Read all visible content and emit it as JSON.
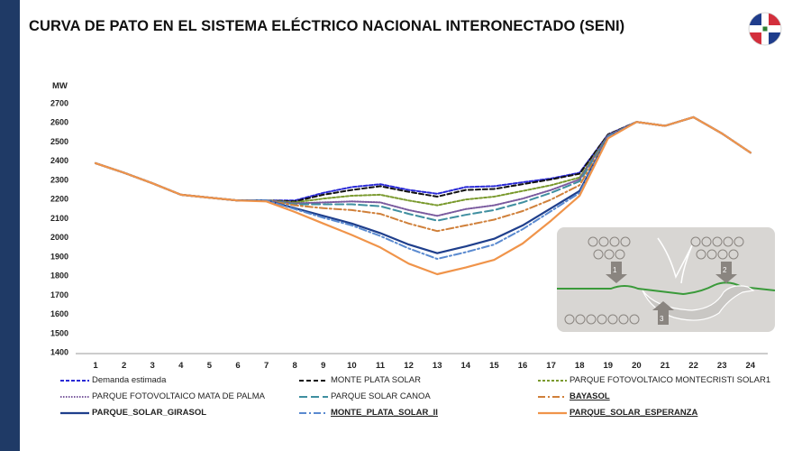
{
  "header": {
    "title": "CURVA DE PATO EN EL SISTEMA ELÉCTRICO NACIONAL INTERONECTADO (SENI)",
    "flag_icon": "dominican-republic-flag-icon"
  },
  "chart_data": {
    "type": "line",
    "title": "",
    "ylabel": "MW",
    "xlabel": "",
    "x": [
      1,
      2,
      3,
      4,
      5,
      6,
      7,
      8,
      9,
      10,
      11,
      12,
      13,
      14,
      15,
      16,
      17,
      18,
      19,
      20,
      21,
      22,
      23,
      24
    ],
    "ylim": [
      1400,
      2700
    ],
    "yticks": [
      1400,
      1500,
      1600,
      1700,
      1800,
      1900,
      2000,
      2100,
      2200,
      2300,
      2400,
      2500,
      2600,
      2700
    ],
    "grid": false,
    "legend_position": "bottom",
    "series": [
      {
        "name": "Demanda estimada",
        "color": "#2a2ad6",
        "dash": "4,2",
        "width": 2,
        "values": [
          2385,
          2335,
          2280,
          2220,
          2205,
          2190,
          2190,
          2190,
          2230,
          2260,
          2275,
          2245,
          2225,
          2260,
          2265,
          2285,
          2305,
          2335,
          2535,
          2600,
          2580,
          2625,
          2540,
          2440
        ]
      },
      {
        "name": "MONTE PLATA SOLAR",
        "color": "#111111",
        "dash": "5,3",
        "width": 2,
        "values": [
          2385,
          2335,
          2280,
          2220,
          2205,
          2190,
          2190,
          2185,
          2220,
          2245,
          2265,
          2235,
          2210,
          2245,
          2250,
          2275,
          2300,
          2330,
          2535,
          2600,
          2580,
          2625,
          2540,
          2440
        ]
      },
      {
        "name": "PARQUE FOTOVOLTAICO MONTECRISTI SOLAR1",
        "color": "#7a9a2e",
        "dash": "3,2",
        "width": 2,
        "values": [
          2385,
          2335,
          2280,
          2220,
          2205,
          2190,
          2190,
          2180,
          2200,
          2215,
          2220,
          2190,
          2165,
          2195,
          2210,
          2240,
          2270,
          2310,
          2530,
          2600,
          2580,
          2625,
          2540,
          2440
        ]
      },
      {
        "name": "PARQUE FOTOVOLTAICO MATA DE PALMA",
        "color": "#7a5a9e",
        "dash": "1.5,1.5",
        "width": 2,
        "values": [
          2385,
          2335,
          2280,
          2220,
          2205,
          2190,
          2190,
          2175,
          2180,
          2185,
          2180,
          2140,
          2110,
          2145,
          2165,
          2200,
          2245,
          2300,
          2530,
          2600,
          2580,
          2625,
          2540,
          2440
        ]
      },
      {
        "name": "PARQUE SOLAR CANOA",
        "color": "#3f8fa0",
        "dash": "9,4",
        "width": 2,
        "values": [
          2385,
          2335,
          2280,
          2220,
          2205,
          2190,
          2190,
          2170,
          2170,
          2170,
          2160,
          2120,
          2085,
          2115,
          2140,
          2180,
          2230,
          2290,
          2525,
          2600,
          2580,
          2625,
          2540,
          2440
        ]
      },
      {
        "name": "BAYASOL",
        "color": "#d0803a",
        "dash": "8,3,2,3",
        "width": 2,
        "values": [
          2385,
          2335,
          2280,
          2220,
          2205,
          2190,
          2190,
          2165,
          2150,
          2140,
          2120,
          2070,
          2030,
          2060,
          2090,
          2135,
          2195,
          2270,
          2520,
          2600,
          2580,
          2625,
          2540,
          2440
        ]
      },
      {
        "name": "PARQUE_SOLAR_GIRASOL",
        "color": "#1f3f8c",
        "dash": "",
        "width": 2.2,
        "values": [
          2385,
          2335,
          2280,
          2220,
          2205,
          2190,
          2190,
          2150,
          2110,
          2070,
          2020,
          1960,
          1915,
          1950,
          1990,
          2060,
          2150,
          2240,
          2520,
          2600,
          2580,
          2625,
          2540,
          2440
        ]
      },
      {
        "name": "MONTE_PLATA_SOLAR_II",
        "color": "#5a8ad0",
        "dash": "8,3,2,3",
        "width": 2,
        "values": [
          2385,
          2335,
          2280,
          2220,
          2205,
          2190,
          2190,
          2145,
          2100,
          2060,
          2005,
          1940,
          1885,
          1920,
          1960,
          2040,
          2135,
          2230,
          2520,
          2600,
          2580,
          2625,
          2540,
          2440
        ]
      },
      {
        "name": "PARQUE_SOLAR_ESPERANZA",
        "color": "#f0944a",
        "dash": "",
        "width": 2.2,
        "values": [
          2385,
          2335,
          2280,
          2220,
          2205,
          2190,
          2185,
          2130,
          2070,
          2010,
          1945,
          1860,
          1805,
          1840,
          1880,
          1965,
          2085,
          2215,
          2515,
          2600,
          2580,
          2625,
          2540,
          2440
        ]
      }
    ]
  },
  "legend": {
    "items": [
      {
        "label": "Demanda estimada"
      },
      {
        "label": "MONTE PLATA SOLAR"
      },
      {
        "label": "PARQUE FOTOVOLTAICO MONTECRISTI SOLAR1"
      },
      {
        "label": "PARQUE FOTOVOLTAICO MATA DE PALMA"
      },
      {
        "label": "PARQUE SOLAR CANOA"
      },
      {
        "label": "BAYASOL"
      },
      {
        "label": "PARQUE_SOLAR_GIRASOL"
      },
      {
        "label": "MONTE_PLATA_SOLAR_II"
      },
      {
        "label": "PARQUE_SOLAR_ESPERANZA"
      }
    ]
  },
  "inset": {
    "icon": "duck-curve-illustration-icon",
    "markers": [
      "1",
      "2",
      "3"
    ]
  }
}
